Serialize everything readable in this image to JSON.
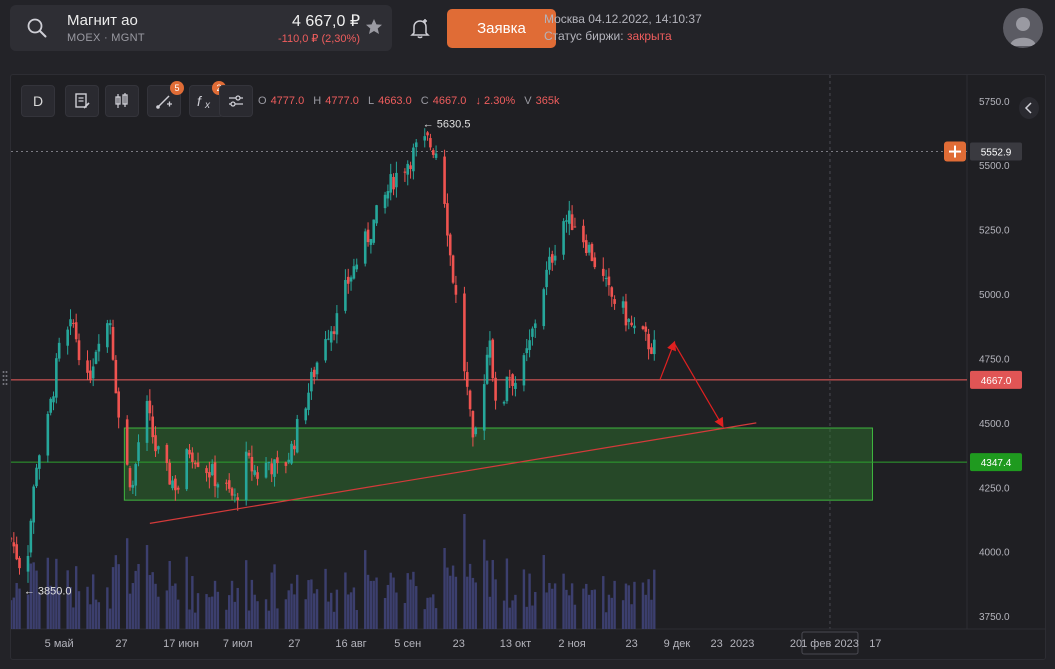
{
  "header": {
    "ticker_name": "Магнит ао",
    "ticker_code": "MOEX · MGNT",
    "price": "4 667,0 ₽",
    "change": "-110,0 ₽ (2,30%)",
    "order_button": "Заявка",
    "exchange_time": "Москва 04.12.2022, 14:10:37",
    "status_label": "Статус биржи:",
    "status_value": "закрыта"
  },
  "toolbar": {
    "interval": "D",
    "drawings_count": "5",
    "indicators_count": "2"
  },
  "ohlc": {
    "open_label": "O",
    "open": "4777.0",
    "high_label": "H",
    "high": "4777.0",
    "low_label": "L",
    "low": "4663.0",
    "close_label": "C",
    "close": "4667.0",
    "change": "↓ 2.30%",
    "volume_label": "V",
    "volume": "365k"
  },
  "colors": {
    "up": "#26a69a",
    "down": "#ef5350",
    "accent": "#e06c36",
    "zone": "#2f7a2f",
    "volume": "#3c3f6e"
  },
  "chart_data": {
    "type": "candlestick",
    "ylim": [
      3700,
      5850
    ],
    "y_ticks": [
      3750,
      4000,
      4250,
      4500,
      4750,
      5000,
      5250,
      5500,
      5750
    ],
    "y_tick_labels": [
      "3750.0",
      "4000.0",
      "4250.0",
      "4500.0",
      "4750.0",
      "5000.0",
      "5250.0",
      "5500.0",
      "5750.0"
    ],
    "x_ticks": [
      {
        "label": "5 май",
        "day": 4
      },
      {
        "label": "27",
        "day": 26
      },
      {
        "label": "17 июн",
        "day": 47
      },
      {
        "label": "7 июл",
        "day": 67
      },
      {
        "label": "27",
        "day": 87
      },
      {
        "label": "16 авг",
        "day": 107
      },
      {
        "label": "5 сен",
        "day": 127
      },
      {
        "label": "23",
        "day": 145
      },
      {
        "label": "13 окт",
        "day": 165
      },
      {
        "label": "2 ноя",
        "day": 185
      },
      {
        "label": "23",
        "day": 206
      },
      {
        "label": "9 дек",
        "day": 222
      },
      {
        "label": "23",
        "day": 236
      },
      {
        "label": "2023",
        "day": 245
      },
      {
        "label": "20",
        "day": 264
      },
      {
        "label": "1 фев 2023",
        "day": 276
      },
      {
        "label": "17",
        "day": 292
      }
    ],
    "x_range_days": [
      -13,
      324
    ],
    "last_day": 216,
    "max_label": "← 5630.5",
    "min_label": "← 3850.0",
    "max_point": {
      "day": 133,
      "value": 5630.5
    },
    "min_point": {
      "day": -12,
      "value": 3850.0
    },
    "price_lines": [
      {
        "label": "5552.9",
        "value": 5552.9,
        "style": "dotted"
      },
      {
        "label": "4667.0",
        "value": 4667.0,
        "style": "current"
      },
      {
        "label": "4347.4",
        "value": 4347.4,
        "style": "level"
      }
    ],
    "zone": {
      "day_from": 27,
      "day_to": 291,
      "value_from": 4200,
      "value_to": 4480
    },
    "trend_line": [
      {
        "day": 36,
        "value": 4110
      },
      {
        "day": 250,
        "value": 4500
      }
    ],
    "arrow_path": [
      {
        "day": 216,
        "value": 4667
      },
      {
        "day": 221,
        "value": 4810
      },
      {
        "day": 238,
        "value": 4490
      }
    ],
    "anchors": [
      [
        -13,
        4050
      ],
      [
        -8,
        3900
      ],
      [
        -4,
        4350
      ],
      [
        0,
        4500
      ],
      [
        4,
        4780
      ],
      [
        9,
        4880
      ],
      [
        14,
        4650
      ],
      [
        18,
        4850
      ],
      [
        22,
        4900
      ],
      [
        26,
        4400
      ],
      [
        30,
        4250
      ],
      [
        34,
        4600
      ],
      [
        38,
        4400
      ],
      [
        42,
        4300
      ],
      [
        46,
        4250
      ],
      [
        50,
        4400
      ],
      [
        54,
        4350
      ],
      [
        58,
        4300
      ],
      [
        62,
        4250
      ],
      [
        66,
        4200
      ],
      [
        70,
        4350
      ],
      [
        74,
        4300
      ],
      [
        78,
        4350
      ],
      [
        82,
        4300
      ],
      [
        86,
        4400
      ],
      [
        90,
        4550
      ],
      [
        94,
        4700
      ],
      [
        98,
        4850
      ],
      [
        102,
        4900
      ],
      [
        106,
        5050
      ],
      [
        110,
        5150
      ],
      [
        114,
        5250
      ],
      [
        118,
        5350
      ],
      [
        122,
        5450
      ],
      [
        126,
        5500
      ],
      [
        130,
        5560
      ],
      [
        134,
        5590
      ],
      [
        138,
        5550
      ],
      [
        140,
        5380
      ],
      [
        142,
        5150
      ],
      [
        145,
        4900
      ],
      [
        148,
        4620
      ],
      [
        150,
        4400
      ],
      [
        153,
        4600
      ],
      [
        156,
        4850
      ],
      [
        159,
        4400
      ],
      [
        162,
        4700
      ],
      [
        166,
        4650
      ],
      [
        170,
        4800
      ],
      [
        174,
        5000
      ],
      [
        178,
        5150
      ],
      [
        182,
        5290
      ],
      [
        186,
        5280
      ],
      [
        190,
        5200
      ],
      [
        194,
        5100
      ],
      [
        198,
        5000
      ],
      [
        202,
        4950
      ],
      [
        206,
        4870
      ],
      [
        210,
        4830
      ],
      [
        214,
        4790
      ],
      [
        216,
        4667
      ]
    ],
    "volume_max": 500
  }
}
